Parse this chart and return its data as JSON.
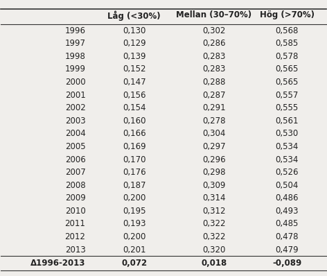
{
  "headers": [
    "",
    "Låg (<30%)",
    "Mellan (30–70%)",
    "Hög (>70%)"
  ],
  "rows": [
    [
      "1996",
      "0,130",
      "0,302",
      "0,568"
    ],
    [
      "1997",
      "0,129",
      "0,286",
      "0,585"
    ],
    [
      "1998",
      "0,139",
      "0,283",
      "0,578"
    ],
    [
      "1999",
      "0,152",
      "0,283",
      "0,565"
    ],
    [
      "2000",
      "0,147",
      "0,288",
      "0,565"
    ],
    [
      "2001",
      "0,156",
      "0,287",
      "0,557"
    ],
    [
      "2002",
      "0,154",
      "0,291",
      "0,555"
    ],
    [
      "2003",
      "0,160",
      "0,278",
      "0,561"
    ],
    [
      "2004",
      "0,166",
      "0,304",
      "0,530"
    ],
    [
      "2005",
      "0,169",
      "0,297",
      "0,534"
    ],
    [
      "2006",
      "0,170",
      "0,296",
      "0,534"
    ],
    [
      "2007",
      "0,176",
      "0,298",
      "0,526"
    ],
    [
      "2008",
      "0,187",
      "0,309",
      "0,504"
    ],
    [
      "2009",
      "0,200",
      "0,314",
      "0,486"
    ],
    [
      "2010",
      "0,195",
      "0,312",
      "0,493"
    ],
    [
      "2011",
      "0,193",
      "0,322",
      "0,485"
    ],
    [
      "2012",
      "0,200",
      "0,322",
      "0,478"
    ],
    [
      "2013",
      "0,201",
      "0,320",
      "0,479"
    ]
  ],
  "footer_row": [
    "Δ1996-2013",
    "0,072",
    "0,018",
    "-0,089"
  ],
  "bg_color": "#f0eeeb",
  "line_color": "#333333",
  "text_color": "#222222",
  "font_size": 8.5,
  "header_font_size": 8.5
}
